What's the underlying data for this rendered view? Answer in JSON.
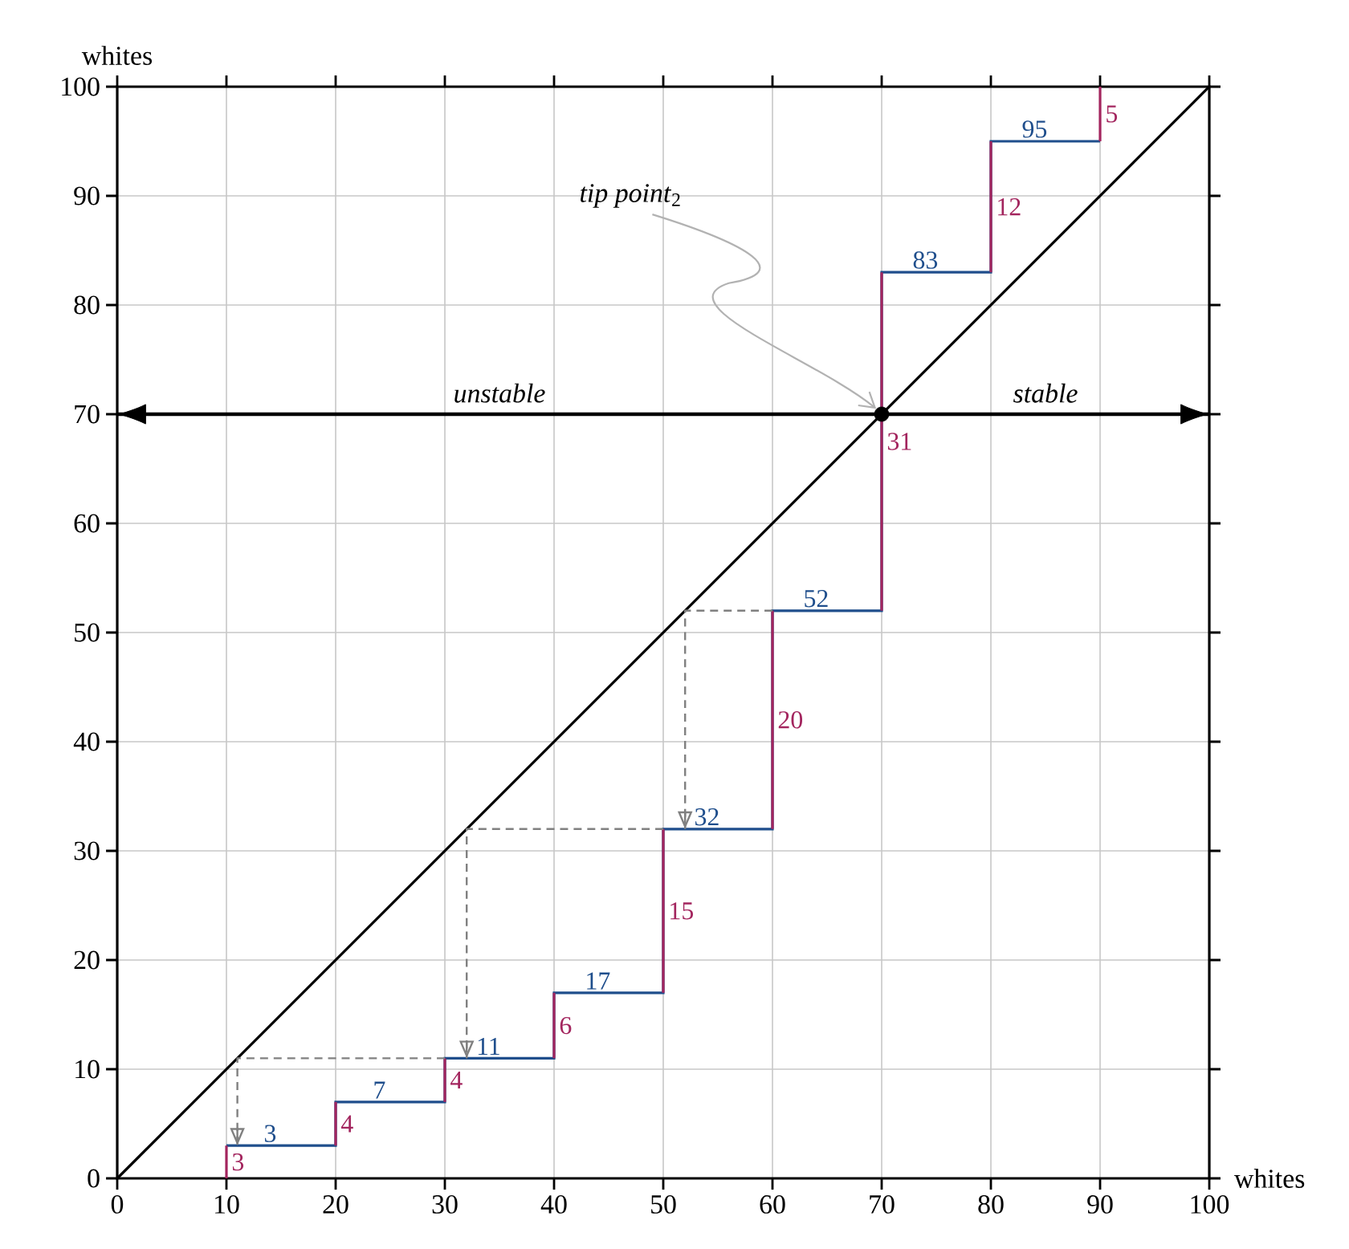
{
  "chart_data": {
    "type": "line",
    "xlabel": "whites",
    "ylabel": "whites",
    "xlim": [
      0,
      100
    ],
    "ylim": [
      0,
      100
    ],
    "xticks": [
      0,
      10,
      20,
      30,
      40,
      50,
      60,
      70,
      80,
      90,
      100
    ],
    "yticks": [
      0,
      10,
      20,
      30,
      40,
      50,
      60,
      70,
      80,
      90,
      100
    ],
    "grid": true,
    "series": [
      {
        "color": "#000000",
        "x": [
          0,
          100
        ],
        "values": [
          0,
          100
        ]
      },
      {
        "type": "step",
        "color": "#1f4e8c",
        "x": [
          10,
          20,
          30,
          40,
          50,
          60,
          70,
          80,
          90
        ],
        "values": [
          3,
          7,
          11,
          17,
          32,
          52,
          83,
          95,
          95
        ],
        "value_labels": [
          "3",
          "7",
          "11",
          "17",
          "32",
          "52",
          "83",
          "95",
          null
        ]
      },
      {
        "color": "#a3255e",
        "x": [
          10,
          10
        ],
        "values": [
          0,
          3
        ]
      },
      {
        "color": "#a3255e",
        "x": [
          20,
          20
        ],
        "values": [
          3,
          7
        ]
      },
      {
        "color": "#a3255e",
        "x": [
          30,
          30
        ],
        "values": [
          7,
          11
        ]
      },
      {
        "color": "#a3255e",
        "x": [
          40,
          40
        ],
        "values": [
          11,
          17
        ]
      },
      {
        "color": "#a3255e",
        "x": [
          50,
          50
        ],
        "values": [
          17,
          32
        ]
      },
      {
        "color": "#a3255e",
        "x": [
          60,
          60
        ],
        "values": [
          32,
          52
        ]
      },
      {
        "color": "#a3255e",
        "x": [
          70,
          70
        ],
        "values": [
          52,
          83
        ]
      },
      {
        "color": "#a3255e",
        "x": [
          80,
          80
        ],
        "values": [
          83,
          95
        ]
      },
      {
        "color": "#a3255e",
        "x": [
          90,
          90
        ],
        "values": [
          95,
          100
        ]
      },
      {
        "color": "#808080",
        "line_style": "dashed",
        "x": [
          60,
          52,
          52
        ],
        "values": [
          52,
          52,
          32
        ]
      },
      {
        "color": "#808080",
        "line_style": "dashed",
        "x": [
          50,
          32,
          32
        ],
        "values": [
          32,
          32,
          11
        ]
      },
      {
        "color": "#808080",
        "line_style": "dashed",
        "x": [
          30,
          11,
          11
        ],
        "values": [
          11,
          11,
          3
        ]
      },
      {
        "type": "scatter",
        "color": "#000000",
        "marker": "circle",
        "x": [
          70
        ],
        "values": [
          70
        ]
      }
    ],
    "ref_lines": [
      {
        "axis": "y",
        "value": 70,
        "color": "#000000"
      }
    ],
    "annotations": [
      {
        "text": "unstable",
        "x": 35,
        "y": 70
      },
      {
        "text": "stable",
        "x": 85,
        "y": 70
      },
      {
        "text": "*tip point*$_{2}$",
        "x": 70,
        "y": 70
      },
      {
        "text": "3",
        "x": 10,
        "y": 1.5
      },
      {
        "text": "4",
        "x": 20,
        "y": 5
      },
      {
        "text": "4",
        "x": 30,
        "y": 9
      },
      {
        "text": "6",
        "x": 40,
        "y": 14
      },
      {
        "text": "15",
        "x": 50,
        "y": 24.5
      },
      {
        "text": "20",
        "x": 60,
        "y": 42
      },
      {
        "text": "31",
        "x": 70,
        "y": 67.5
      },
      {
        "text": "12",
        "x": 80,
        "y": 89
      },
      {
        "text": "5",
        "x": 90,
        "y": 97.5
      }
    ]
  }
}
